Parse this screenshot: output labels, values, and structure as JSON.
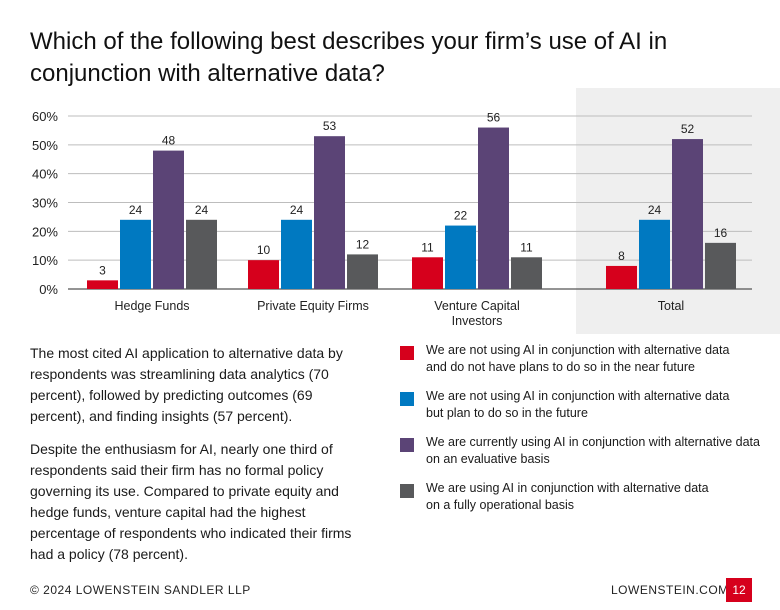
{
  "title": "Which of the following best describes your firm’s use of AI in conjunction with alternative data?",
  "chart_data": {
    "type": "bar",
    "categories": [
      "Hedge Funds",
      "Private Equity Firms",
      "Venture Capital Investors",
      "Total"
    ],
    "category_lines": [
      [
        "Hedge Funds"
      ],
      [
        "Private Equity Firms"
      ],
      [
        "Venture Capital",
        "Investors"
      ],
      [
        "Total"
      ]
    ],
    "series": [
      {
        "color": "#d6001c",
        "values": [
          3,
          10,
          11,
          8
        ]
      },
      {
        "color": "#0079c1",
        "values": [
          24,
          24,
          22,
          24
        ]
      },
      {
        "color": "#5b4476",
        "values": [
          48,
          53,
          56,
          52
        ]
      },
      {
        "color": "#58595b",
        "values": [
          24,
          12,
          11,
          16
        ]
      }
    ],
    "y_ticks": [
      "0%",
      "10%",
      "20%",
      "30%",
      "40%",
      "50%",
      "60%"
    ],
    "ylim": [
      0,
      60
    ],
    "grid": true,
    "highlight_category": "Total",
    "highlight_color": "#efefef"
  },
  "body": {
    "paragraph1": "The most cited AI application to alternative data by respondents was streamlining data analytics (70 percent), followed by predicting outcomes (69 percent), and finding insights (57 percent).",
    "paragraph2": "Despite the enthusiasm for AI, nearly one third of respondents said their firm has no formal policy governing its use. Compared to private equity and hedge funds, venture capital had the highest percentage of respondents who indicated their firms had a policy (78 percent)."
  },
  "legend": [
    {
      "color": "#d6001c",
      "line1": "We are not using AI in conjunction with alternative data",
      "line2": "and do not have plans to do so in the near future"
    },
    {
      "color": "#0079c1",
      "line1": "We are not using AI in conjunction with alternative data",
      "line2": "but plan to do so in the future"
    },
    {
      "color": "#5b4476",
      "line1": "We are currently using AI in conjunction with alternative data",
      "line2": "on an evaluative basis"
    },
    {
      "color": "#58595b",
      "line1": "We are using AI in conjunction with alternative data",
      "line2": "on a fully operational basis"
    }
  ],
  "footer": {
    "copyright": "© 2024 LOWENSTEIN SANDLER LLP",
    "website": "LOWENSTEIN.COM",
    "page_number": "12"
  }
}
